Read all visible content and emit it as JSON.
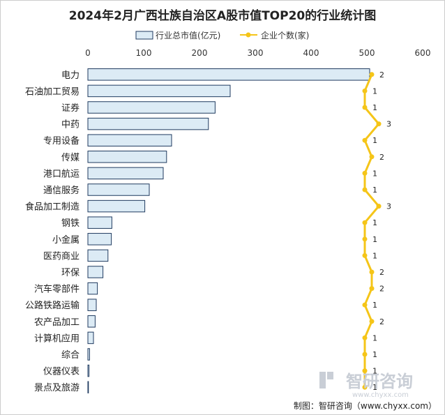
{
  "chart_data": {
    "type": "bar",
    "title": "2024年2月广西壮族自治区A股市值TOP20的行业统计图",
    "orientation": "horizontal",
    "categories": [
      "电力",
      "石油加工贸易",
      "证券",
      "中药",
      "专用设备",
      "传媒",
      "港口航运",
      "通信服务",
      "食品加工制造",
      "钢铁",
      "小金属",
      "医药商业",
      "环保",
      "汽车零部件",
      "公路铁路运输",
      "农产品加工",
      "计算机应用",
      "综合",
      "仪器仪表",
      "景点及旅游"
    ],
    "series": [
      {
        "name": "行业总市值(亿元)",
        "type": "bar",
        "values": [
          505,
          255,
          228,
          216,
          150,
          141,
          135,
          110,
          102,
          43,
          42,
          36,
          27,
          17,
          15,
          13,
          10,
          3,
          2,
          1
        ]
      },
      {
        "name": "企业个数(家)",
        "type": "line",
        "values": [
          2,
          1,
          1,
          3,
          1,
          2,
          1,
          1,
          3,
          1,
          1,
          1,
          2,
          2,
          1,
          2,
          1,
          1,
          1,
          1
        ]
      }
    ],
    "xlim": [
      0,
      600
    ],
    "xticks": [
      "0",
      "100",
      "200",
      "300",
      "400",
      "500",
      "600"
    ],
    "legend_position": "top",
    "grid": false,
    "colors": {
      "bar_fill": "#dcebf5",
      "bar_stroke": "#1f3a5f",
      "line": "#f5c518",
      "marker": "#f5c518"
    }
  },
  "watermark": {
    "brand": "智研咨询",
    "url": "www.chyxx.com"
  },
  "source": "制图：智研咨询（www.chyxx.com）"
}
